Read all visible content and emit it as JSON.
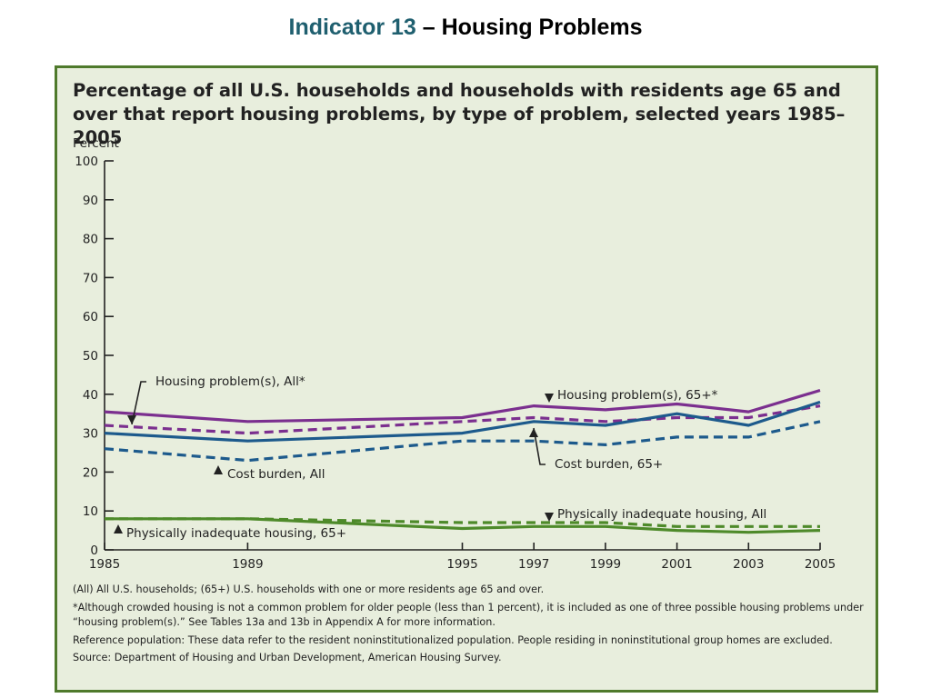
{
  "slide": {
    "title_indicator": "Indicator 13",
    "title_rest": " – Housing Problems"
  },
  "chart_data": {
    "type": "line",
    "title": "Percentage of all U.S. households and households with residents age 65 and over that report housing problems, by type of problem, selected years 1985–2005",
    "ylabel": "Percent",
    "xlabel": "",
    "ylim": [
      0,
      100
    ],
    "yticks": [
      0,
      10,
      20,
      30,
      40,
      50,
      60,
      70,
      80,
      90,
      100
    ],
    "x": [
      1985,
      1989,
      1995,
      1997,
      1999,
      2001,
      2003,
      2005
    ],
    "grid": false,
    "series": [
      {
        "name": "Housing problem(s), All*",
        "color": "#7b2f8f",
        "dash": "solid",
        "values": [
          35.5,
          33,
          34,
          37,
          36,
          37.5,
          35.5,
          41
        ]
      },
      {
        "name": "Housing problem(s), 65+*",
        "color": "#7b2f8f",
        "dash": "dashed",
        "values": [
          32,
          30,
          33,
          34,
          33,
          34,
          34,
          37
        ]
      },
      {
        "name": "Cost burden, All",
        "color": "#1d5a8c",
        "dash": "solid",
        "values": [
          30,
          28,
          30,
          33,
          32,
          35,
          32,
          38
        ]
      },
      {
        "name": "Cost burden, 65+",
        "color": "#1d5a8c",
        "dash": "dashed",
        "values": [
          26,
          23,
          28,
          28,
          27,
          29,
          29,
          33
        ]
      },
      {
        "name": "Physically inadequate housing, All",
        "color": "#4e8a2a",
        "dash": "dashed",
        "values": [
          8,
          8,
          7,
          7,
          7,
          6,
          6,
          6
        ]
      },
      {
        "name": "Physically inadequate housing, 65+",
        "color": "#4e8a2a",
        "dash": "solid",
        "values": [
          8,
          8,
          5.5,
          6,
          6,
          5,
          4.5,
          5
        ]
      }
    ]
  },
  "notes": [
    "(All) All U.S. households;  (65+) U.S. households with one or more residents age 65 and over.",
    "*Although crowded housing is not a common problem for older people (less than 1 percent), it is included as one of three possible housing problems under “housing problem(s).” See Tables 13a and 13b in Appendix A for more information.",
    "Reference population: These data refer to the resident noninstitutionalized population. People residing in noninstitutional group homes are excluded.",
    "Source: Department of Housing and Urban Development, American Housing Survey."
  ]
}
